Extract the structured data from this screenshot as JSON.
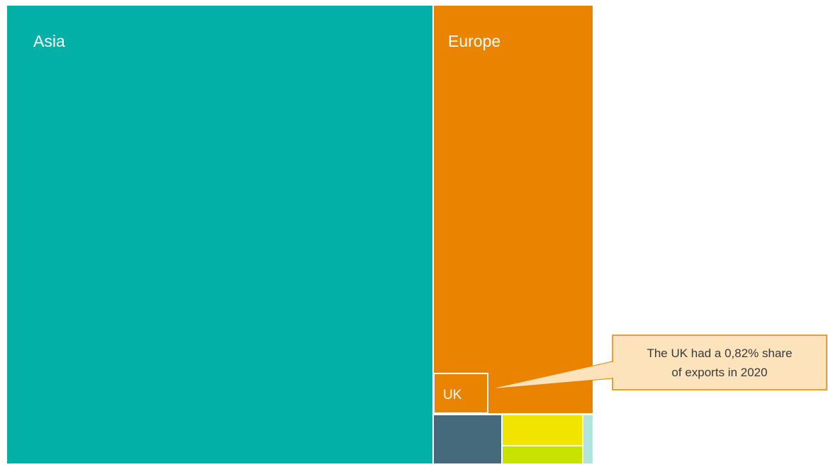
{
  "chart_data": {
    "type": "treemap",
    "title": "",
    "colors": {
      "Asia": "#02B0A8",
      "Europe": "#E98300",
      "UK": "#E98300",
      "Region A": "#456A7B",
      "Region B": "#F1E400",
      "Region C": "#C6E300",
      "Region D": "#B2E5DE",
      "callout_fill": "#FCE3BC",
      "callout_stroke": "#E98300",
      "divider": "#FFFFFF"
    },
    "nodes": [
      {
        "id": "asia",
        "label": "Asia",
        "show_label": true
      },
      {
        "id": "europe",
        "label": "Europe",
        "show_label": true
      },
      {
        "id": "uk",
        "label": "UK",
        "show_label": true,
        "parent": "europe",
        "share_percent": 0.82
      },
      {
        "id": "region_a",
        "label": "",
        "show_label": false
      },
      {
        "id": "region_b",
        "label": "",
        "show_label": false
      },
      {
        "id": "region_c",
        "label": "",
        "show_label": false
      },
      {
        "id": "region_d",
        "label": "",
        "show_label": false
      }
    ],
    "annotation": {
      "target": "UK",
      "lines": [
        "The UK had a 0,82% share",
        "of exports in 2020"
      ]
    }
  }
}
